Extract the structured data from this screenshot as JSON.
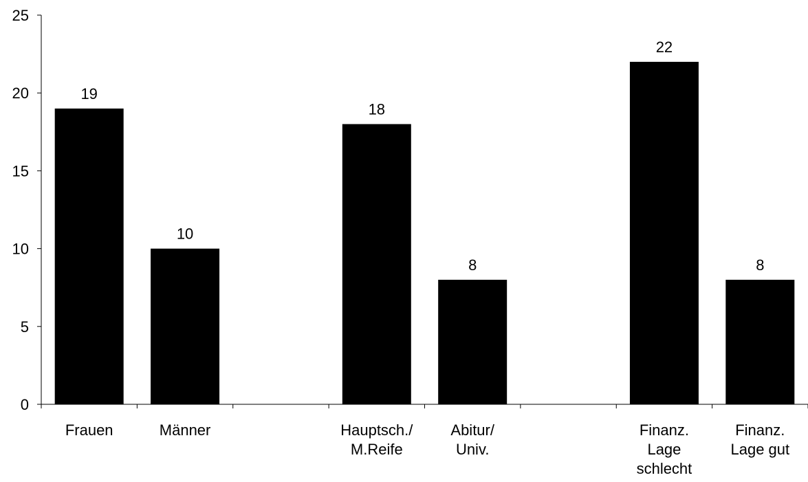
{
  "chart_data": {
    "type": "bar",
    "title": "",
    "xlabel": "",
    "ylabel": "",
    "ylim": [
      0,
      25
    ],
    "yticks": [
      0,
      5,
      10,
      15,
      20,
      25
    ],
    "grid": false,
    "bar_color": "#000000",
    "categories": [
      [
        "Frauen"
      ],
      [
        "Männer"
      ],
      [],
      [
        "Hauptsch./",
        "M.Reife"
      ],
      [
        "Abitur/",
        "Univ."
      ],
      [],
      [
        "Finanz.",
        "Lage",
        "schlecht"
      ],
      [
        "Finanz.",
        "Lage gut"
      ]
    ],
    "values": [
      19,
      10,
      null,
      18,
      8,
      null,
      22,
      8
    ],
    "data_labels": [
      "19",
      "10",
      "",
      "18",
      "8",
      "",
      "22",
      "8"
    ]
  }
}
